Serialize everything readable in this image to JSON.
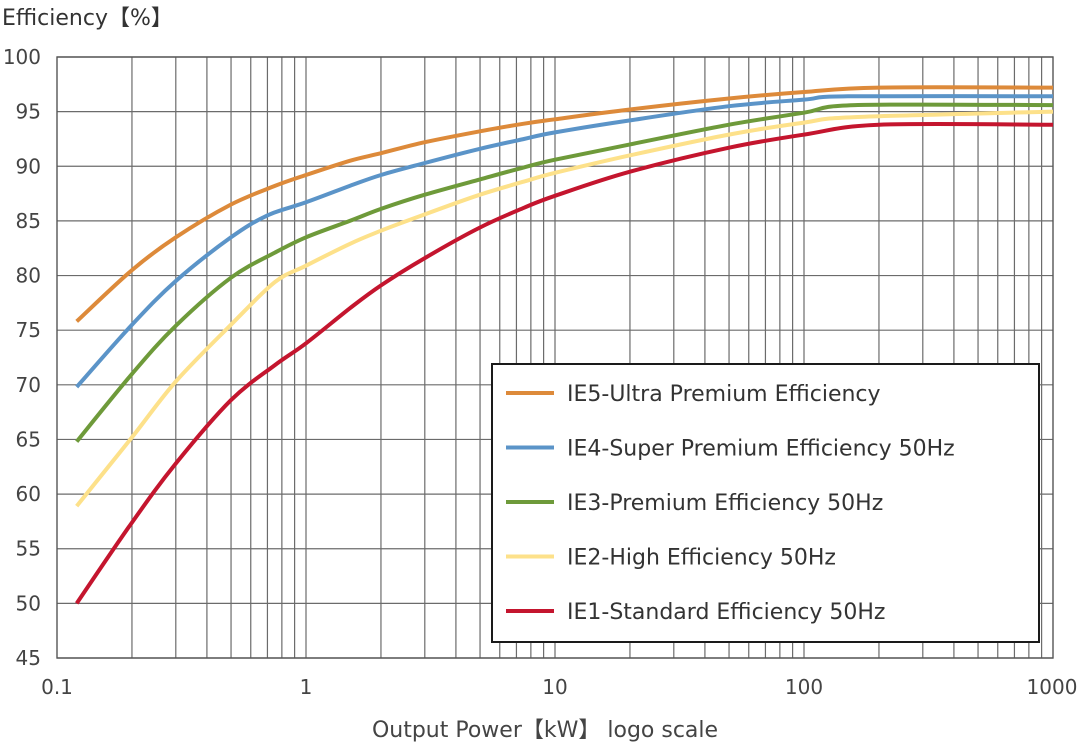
{
  "chart_data": {
    "type": "line",
    "title": "",
    "ylabel": "Efficiency【%】",
    "xlabel": "Output Power【kW】 logo scale",
    "x_scale": "log",
    "xlim": [
      0.1,
      1000
    ],
    "ylim": [
      45,
      100
    ],
    "x_ticks": [
      "0.1",
      "1",
      "10",
      "100",
      "1000"
    ],
    "y_ticks": [
      "100",
      "95",
      "90",
      "85",
      "80",
      "75",
      "70",
      "65",
      "60",
      "55",
      "50",
      "45"
    ],
    "grid": true,
    "legend_position": "lower-right",
    "series": [
      {
        "name": "IE5-Ultra Premium Efficiency",
        "color": "#DD8A3A",
        "points": [
          [
            0.12,
            75.8
          ],
          [
            0.2,
            80.5
          ],
          [
            0.3,
            83.5
          ],
          [
            0.5,
            86.5
          ],
          [
            0.75,
            88.2
          ],
          [
            1,
            89.2
          ],
          [
            1.5,
            90.5
          ],
          [
            2,
            91.2
          ],
          [
            3,
            92.2
          ],
          [
            5,
            93.2
          ],
          [
            7.5,
            93.9
          ],
          [
            10,
            94.3
          ],
          [
            20,
            95.2
          ],
          [
            50,
            96.2
          ],
          [
            100,
            96.8
          ],
          [
            200,
            97.2
          ],
          [
            1000,
            97.2
          ]
        ]
      },
      {
        "name": "IE4-Super Premium Efficiency 50Hz",
        "color": "#5B94C8",
        "points": [
          [
            0.12,
            69.8
          ],
          [
            0.2,
            75.5
          ],
          [
            0.3,
            79.5
          ],
          [
            0.5,
            83.5
          ],
          [
            0.7,
            85.5
          ],
          [
            1,
            86.7
          ],
          [
            1.5,
            88.2
          ],
          [
            2,
            89.2
          ],
          [
            3,
            90.3
          ],
          [
            5,
            91.6
          ],
          [
            7.5,
            92.5
          ],
          [
            10,
            93.1
          ],
          [
            20,
            94.2
          ],
          [
            50,
            95.5
          ],
          [
            100,
            96.1
          ],
          [
            150,
            96.4
          ],
          [
            1000,
            96.4
          ]
        ]
      },
      {
        "name": "IE3-Premium Efficiency 50Hz",
        "color": "#6E9A3A",
        "points": [
          [
            0.12,
            64.8
          ],
          [
            0.2,
            71.0
          ],
          [
            0.3,
            75.4
          ],
          [
            0.5,
            79.8
          ],
          [
            0.75,
            82.1
          ],
          [
            1,
            83.5
          ],
          [
            1.5,
            85.0
          ],
          [
            2,
            86.1
          ],
          [
            3,
            87.4
          ],
          [
            5,
            88.8
          ],
          [
            7.5,
            89.9
          ],
          [
            10,
            90.6
          ],
          [
            20,
            92.0
          ],
          [
            50,
            93.8
          ],
          [
            100,
            94.9
          ],
          [
            160,
            95.6
          ],
          [
            1000,
            95.6
          ]
        ]
      },
      {
        "name": "IE2-High Efficiency 50Hz",
        "color": "#FDE18A",
        "points": [
          [
            0.12,
            58.9
          ],
          [
            0.2,
            65.2
          ],
          [
            0.3,
            70.3
          ],
          [
            0.5,
            75.5
          ],
          [
            0.75,
            79.4
          ],
          [
            1,
            80.9
          ],
          [
            1.5,
            82.9
          ],
          [
            2,
            84.1
          ],
          [
            3,
            85.6
          ],
          [
            5,
            87.4
          ],
          [
            7.5,
            88.6
          ],
          [
            10,
            89.4
          ],
          [
            20,
            91.0
          ],
          [
            50,
            92.9
          ],
          [
            100,
            94.0
          ],
          [
            160,
            94.5
          ],
          [
            1000,
            95.0
          ]
        ]
      },
      {
        "name": "IE1-Standard Efficiency 50Hz",
        "color": "#C4152E",
        "points": [
          [
            0.12,
            50.0
          ],
          [
            0.2,
            57.4
          ],
          [
            0.3,
            62.8
          ],
          [
            0.5,
            68.6
          ],
          [
            0.75,
            71.8
          ],
          [
            1,
            73.8
          ],
          [
            1.5,
            77.0
          ],
          [
            2,
            79.1
          ],
          [
            3,
            81.6
          ],
          [
            5,
            84.4
          ],
          [
            7.5,
            86.2
          ],
          [
            10,
            87.3
          ],
          [
            20,
            89.5
          ],
          [
            50,
            91.7
          ],
          [
            100,
            92.9
          ],
          [
            200,
            93.8
          ],
          [
            1000,
            93.8
          ]
        ]
      }
    ]
  }
}
